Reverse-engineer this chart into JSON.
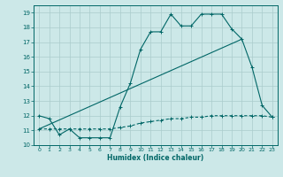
{
  "xlabel": "Humidex (Indice chaleur)",
  "ylabel": "",
  "bg_color": "#cce8e8",
  "grid_color": "#aacccc",
  "line_color": "#006666",
  "xlim": [
    -0.5,
    23.5
  ],
  "ylim": [
    10,
    19.5
  ],
  "yticks": [
    10,
    11,
    12,
    13,
    14,
    15,
    16,
    17,
    18,
    19
  ],
  "xticks": [
    0,
    1,
    2,
    3,
    4,
    5,
    6,
    7,
    8,
    9,
    10,
    11,
    12,
    13,
    14,
    15,
    16,
    17,
    18,
    19,
    20,
    21,
    22,
    23
  ],
  "line1_x": [
    0,
    1,
    2,
    3,
    4,
    5,
    6,
    7,
    8,
    9,
    10,
    11,
    12,
    13,
    14,
    15,
    16,
    17,
    18,
    19,
    20,
    21,
    22,
    23
  ],
  "line1_y": [
    12.0,
    11.8,
    10.7,
    11.1,
    10.5,
    10.5,
    10.5,
    10.5,
    12.6,
    14.2,
    16.5,
    17.7,
    17.7,
    18.9,
    18.1,
    18.1,
    18.9,
    18.9,
    18.9,
    17.9,
    17.2,
    15.3,
    12.7,
    11.9
  ],
  "line2_x": [
    0,
    1,
    2,
    3,
    4,
    5,
    6,
    7,
    8,
    9,
    10,
    11,
    12,
    13,
    14,
    15,
    16,
    17,
    18,
    19,
    20,
    21,
    22,
    23
  ],
  "line2_y": [
    11.1,
    11.1,
    11.1,
    11.1,
    11.1,
    11.1,
    11.1,
    11.1,
    11.2,
    11.3,
    11.5,
    11.6,
    11.7,
    11.8,
    11.8,
    11.9,
    11.9,
    12.0,
    12.0,
    12.0,
    12.0,
    12.0,
    12.0,
    11.9
  ],
  "line3_x": [
    0,
    20
  ],
  "line3_y": [
    11.1,
    17.2
  ]
}
